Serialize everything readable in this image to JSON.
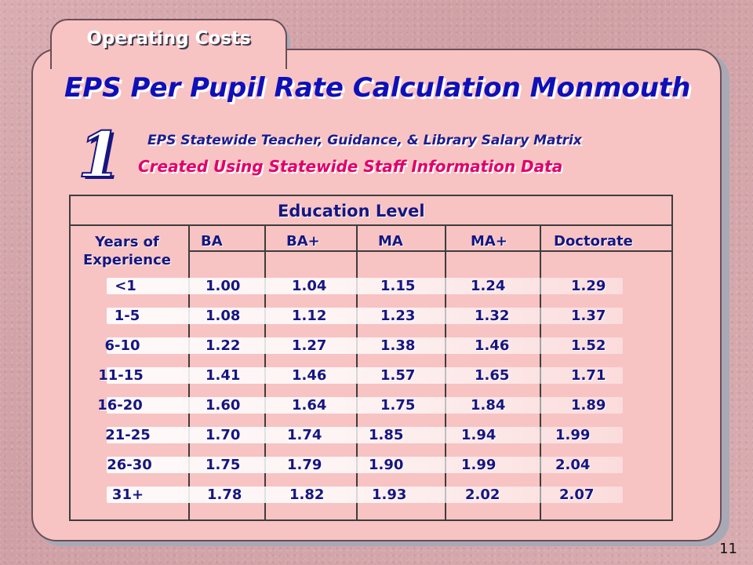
{
  "slide": {
    "tab_title": "Operating Costs",
    "main_title": "EPS Per Pupil Rate Calculation Monmouth",
    "step_number": "1",
    "subtitle": "EPS Statewide Teacher, Guidance, & Library Salary Matrix",
    "subtitle_2": "Created Using Statewide Staff Information Data",
    "page_number": "11"
  },
  "table": {
    "title": "Education Level",
    "years_label": [
      "Years of",
      "Experience"
    ],
    "columns": [
      "BA",
      "BA+",
      "MA",
      "MA+",
      "Doctorate"
    ],
    "rows": [
      {
        "label": "<1",
        "values": [
          "1.00",
          "1.04",
          "1.15",
          "1.24",
          "1.29"
        ]
      },
      {
        "label": "1-5",
        "values": [
          "1.08",
          "1.12",
          "1.23",
          "1.32",
          "1.37"
        ]
      },
      {
        "label": "6-10",
        "values": [
          "1.22",
          "1.27",
          "1.38",
          "1.46",
          "1.52"
        ]
      },
      {
        "label": "11-15",
        "values": [
          "1.41",
          "1.46",
          "1.57",
          "1.65",
          "1.71"
        ]
      },
      {
        "label": "16-20",
        "values": [
          "1.60",
          "1.64",
          "1.75",
          "1.84",
          "1.89"
        ]
      },
      {
        "label": "21-25",
        "values": [
          "1.70",
          "1.74",
          "1.85",
          "1.94",
          "1.99"
        ]
      },
      {
        "label": "26-30",
        "values": [
          "1.75",
          "1.79",
          "1.90",
          "1.99",
          "2.04"
        ]
      },
      {
        "label": "31+",
        "values": [
          "1.78",
          "1.82",
          "1.93",
          "2.02",
          "2.07"
        ]
      }
    ]
  }
}
